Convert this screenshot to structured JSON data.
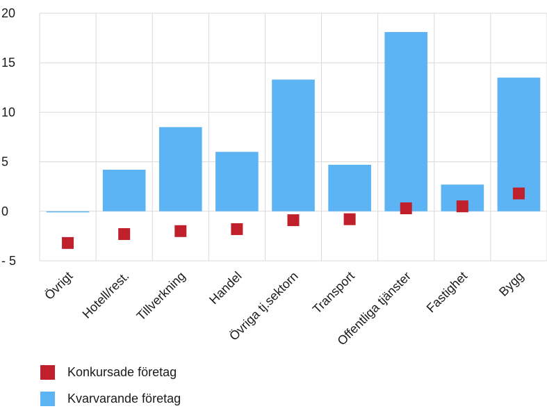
{
  "chart_data": {
    "type": "bar",
    "categories": [
      "Övrigt",
      "Hotell/rest.",
      "Tillverkning",
      "Handel",
      "Övriga tj.sektorn",
      "Transport",
      "Offentliga tjänster",
      "Fastighet",
      "Bygg"
    ],
    "series": [
      {
        "name": "Kvarvarande företag",
        "kind": "bar",
        "color": "#5db4f5",
        "values": [
          -0.1,
          4.2,
          8.5,
          6.0,
          13.3,
          4.7,
          18.1,
          2.7,
          13.5
        ]
      },
      {
        "name": "Konkursade företag",
        "kind": "marker",
        "color": "#c0202b",
        "values": [
          -3.2,
          -2.3,
          -2.0,
          -1.8,
          -0.9,
          -0.8,
          0.3,
          0.5,
          1.8
        ]
      }
    ],
    "yticks": [
      20,
      15,
      10,
      5,
      0,
      -5
    ],
    "ytick_labels": [
      "20",
      "15",
      "10",
      "5",
      "0",
      "- 5"
    ],
    "ylim": [
      -5,
      20
    ],
    "grid": true,
    "legend_position": "bottom-left"
  }
}
